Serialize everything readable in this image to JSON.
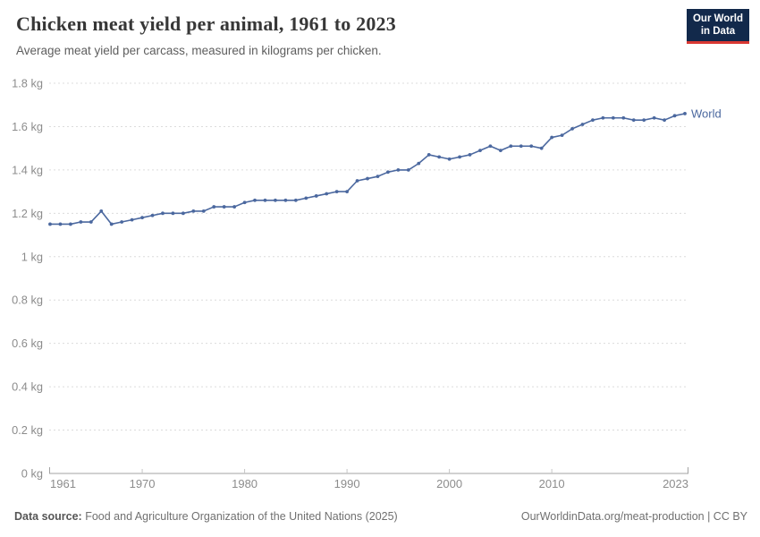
{
  "header": {
    "logo": {
      "line1": "Our World",
      "line2": "in Data"
    }
  },
  "colors": {
    "line": "#4b689f",
    "title": "#373737",
    "subtitle": "#5e5e5e",
    "axis_label": "#8c8c8c",
    "gridline": "#dcdcdc",
    "axis_line": "#a3a3a3",
    "tick": "#c6c6c6",
    "logo_bg": "#12294b",
    "logo_accent": "#d93832",
    "footer": "#707070"
  },
  "chart_data": {
    "type": "line",
    "title": "Chicken meat yield per animal, 1961 to 2023",
    "subtitle": "Average meat yield per carcass, measured in kilograms per chicken.",
    "x": [
      1961,
      1962,
      1963,
      1964,
      1965,
      1966,
      1967,
      1968,
      1969,
      1970,
      1971,
      1972,
      1973,
      1974,
      1975,
      1976,
      1977,
      1978,
      1979,
      1980,
      1981,
      1982,
      1983,
      1984,
      1985,
      1986,
      1987,
      1988,
      1989,
      1990,
      1991,
      1992,
      1993,
      1994,
      1995,
      1996,
      1997,
      1998,
      1999,
      2000,
      2001,
      2002,
      2003,
      2004,
      2005,
      2006,
      2007,
      2008,
      2009,
      2010,
      2011,
      2012,
      2013,
      2014,
      2015,
      2016,
      2017,
      2018,
      2019,
      2020,
      2021,
      2022,
      2023
    ],
    "series": [
      {
        "name": "World",
        "color": "#4b689f",
        "values": [
          1.15,
          1.15,
          1.15,
          1.16,
          1.16,
          1.21,
          1.15,
          1.16,
          1.17,
          1.18,
          1.19,
          1.2,
          1.2,
          1.2,
          1.21,
          1.21,
          1.23,
          1.23,
          1.23,
          1.25,
          1.26,
          1.26,
          1.26,
          1.26,
          1.26,
          1.27,
          1.28,
          1.29,
          1.3,
          1.3,
          1.35,
          1.36,
          1.37,
          1.39,
          1.4,
          1.4,
          1.43,
          1.47,
          1.46,
          1.45,
          1.46,
          1.47,
          1.49,
          1.51,
          1.49,
          1.51,
          1.51,
          1.51,
          1.5,
          1.55,
          1.56,
          1.59,
          1.61,
          1.63,
          1.64,
          1.64,
          1.64,
          1.63,
          1.63,
          1.64,
          1.63,
          1.65,
          1.66
        ]
      }
    ],
    "ylim": [
      0,
      1.8
    ],
    "yticks": [
      0,
      0.2,
      0.4,
      0.6,
      0.8,
      1,
      1.2,
      1.4,
      1.6,
      1.8
    ],
    "ytick_labels": [
      "0 kg",
      "0.2 kg",
      "0.4 kg",
      "0.6 kg",
      "0.8 kg",
      "1 kg",
      "1.2 kg",
      "1.4 kg",
      "1.6 kg",
      "1.8 kg"
    ],
    "xticks": [
      1961,
      1970,
      1980,
      1990,
      2000,
      2010,
      2023
    ],
    "xlabel": "",
    "ylabel": "",
    "grid": "horizontal-dashed",
    "legend_position": "end-of-line-label"
  },
  "footer": {
    "datasource_label": "Data source:",
    "datasource_text": " Food and Agriculture Organization of the United Nations (2025)",
    "right_text": "OurWorldinData.org/meat-production | CC BY"
  }
}
